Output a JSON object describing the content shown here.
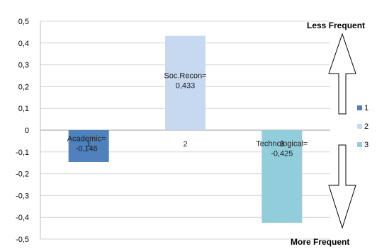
{
  "chart_data": {
    "type": "bar",
    "categories": [
      "1",
      "2",
      "3"
    ],
    "values": [
      -0.146,
      0.433,
      -0.425
    ],
    "bar_colors": [
      "#4f81bd",
      "#c6d9f1",
      "#92cddc"
    ],
    "ylim": [
      -0.5,
      0.5
    ],
    "y_ticks": [
      "-0,5",
      "-0,4",
      "-0,3",
      "-0,2",
      "-0,1",
      "0",
      "0,1",
      "0,2",
      "0,3",
      "0,4",
      "0,5"
    ],
    "data_labels": [
      [
        "Academic=",
        "-0,146"
      ],
      [
        "Soc.Recon=",
        "0,433"
      ],
      [
        "Technological=",
        "-0,425"
      ]
    ],
    "legend": {
      "position": "right",
      "entries": [
        {
          "name": "1",
          "color": "#4f81bd"
        },
        {
          "name": "2",
          "color": "#c6d9f1"
        },
        {
          "name": "3",
          "color": "#92cddc"
        }
      ]
    },
    "annotations": {
      "top": "Less Frequent",
      "bottom": "More  Frequent"
    },
    "grid": true
  }
}
